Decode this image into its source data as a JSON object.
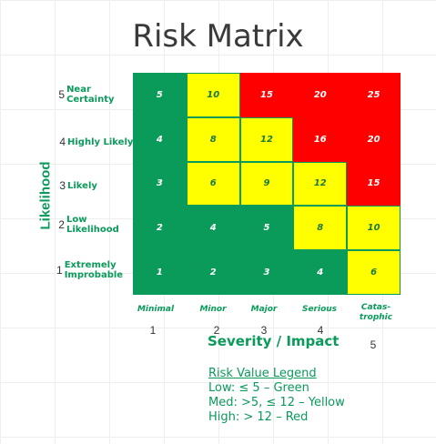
{
  "title": "Risk Matrix",
  "colors": {
    "green": "#0a9a5a",
    "yellow": "#ffff00",
    "red": "#ff0000"
  },
  "y_axis": {
    "label": "Likelihood",
    "levels": [
      {
        "num": "5",
        "label": "Near Certainty"
      },
      {
        "num": "4",
        "label": "Highly Likely"
      },
      {
        "num": "3",
        "label": "Likely"
      },
      {
        "num": "2",
        "label": "Low Likelihood"
      },
      {
        "num": "1",
        "label": "Extremely Improbable"
      }
    ]
  },
  "x_axis": {
    "label": "Severity / Impact",
    "levels": [
      {
        "num": "1",
        "label": "Minimal"
      },
      {
        "num": "2",
        "label": "Minor"
      },
      {
        "num": "3",
        "label": "Major"
      },
      {
        "num": "4",
        "label": "Serious"
      },
      {
        "num": "5",
        "label": "Catas-trophic"
      }
    ]
  },
  "matrix": [
    [
      {
        "v": "5",
        "c": "green"
      },
      {
        "v": "10",
        "c": "yellow"
      },
      {
        "v": "15",
        "c": "red"
      },
      {
        "v": "20",
        "c": "red"
      },
      {
        "v": "25",
        "c": "red"
      }
    ],
    [
      {
        "v": "4",
        "c": "green"
      },
      {
        "v": "8",
        "c": "yellow"
      },
      {
        "v": "12",
        "c": "yellow"
      },
      {
        "v": "16",
        "c": "red"
      },
      {
        "v": "20",
        "c": "red"
      }
    ],
    [
      {
        "v": "3",
        "c": "green"
      },
      {
        "v": "6",
        "c": "yellow"
      },
      {
        "v": "9",
        "c": "yellow"
      },
      {
        "v": "12",
        "c": "yellow"
      },
      {
        "v": "15",
        "c": "red"
      }
    ],
    [
      {
        "v": "2",
        "c": "green"
      },
      {
        "v": "4",
        "c": "green"
      },
      {
        "v": "5",
        "c": "green"
      },
      {
        "v": "8",
        "c": "yellow"
      },
      {
        "v": "10",
        "c": "yellow"
      }
    ],
    [
      {
        "v": "1",
        "c": "green"
      },
      {
        "v": "2",
        "c": "green"
      },
      {
        "v": "3",
        "c": "green"
      },
      {
        "v": "4",
        "c": "green"
      },
      {
        "v": "6",
        "c": "yellow"
      }
    ]
  ],
  "legend": {
    "title": "Risk Value Legend",
    "items": [
      "Low: ≤ 5 – Green",
      "Med: >5, ≤ 12 – Yellow",
      "High: > 12 – Red"
    ]
  }
}
